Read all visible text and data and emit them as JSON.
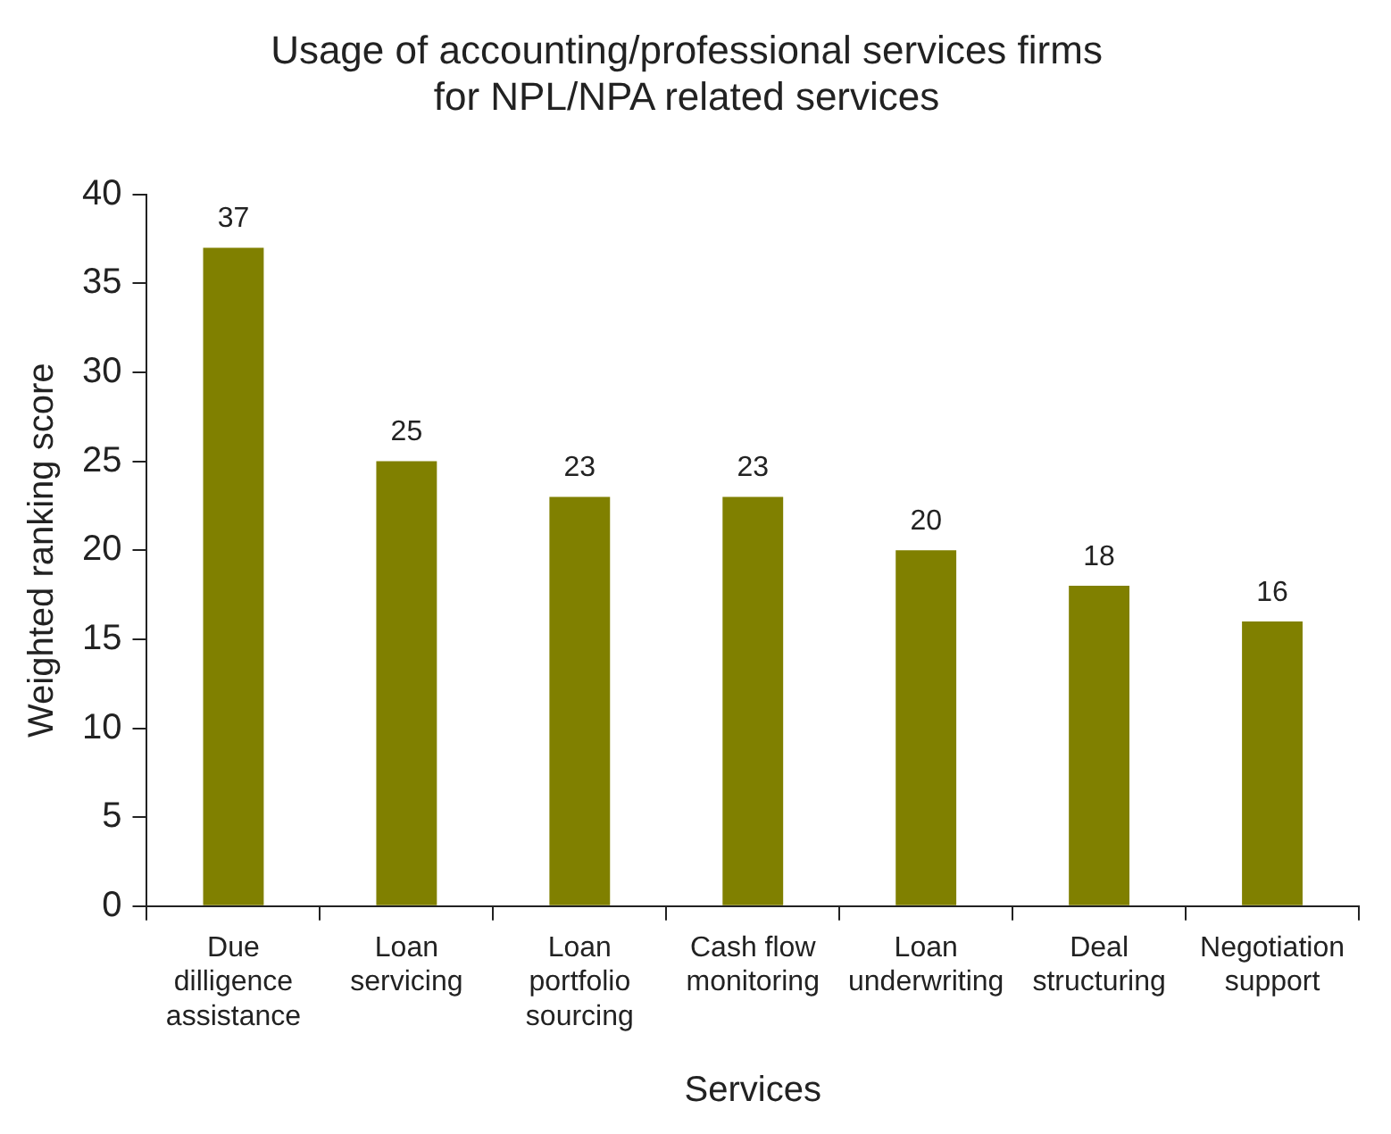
{
  "chart_data": {
    "type": "bar",
    "title": "Usage of accounting/professional services firms\nfor NPL/NPA related services",
    "xlabel": "Services",
    "ylabel": "Weighted ranking score",
    "categories": [
      "Due\ndilligence\nassistance",
      "Loan\nservicing",
      "Loan\nportfolio\nsourcing",
      "Cash flow\nmonitoring",
      "Loan\nunderwriting",
      "Deal\nstructuring",
      "Negotiation\nsupport"
    ],
    "values": [
      37,
      25,
      23,
      23,
      20,
      18,
      16
    ],
    "color": "#808000",
    "ylim": [
      0,
      40
    ],
    "yticks": [
      0,
      5,
      10,
      15,
      20,
      25,
      30,
      35,
      40
    ],
    "grid": false,
    "legend": false,
    "data_labels": true
  }
}
